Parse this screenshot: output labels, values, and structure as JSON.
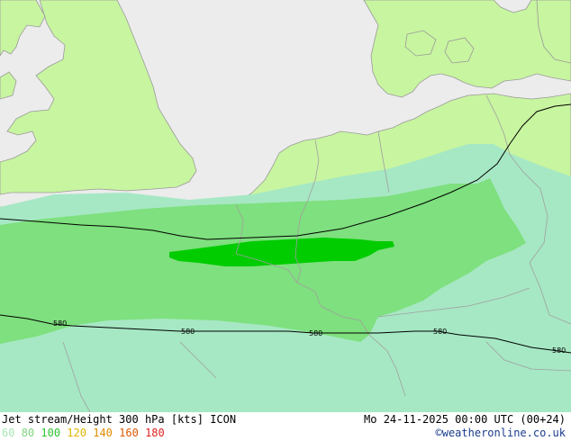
{
  "title": "Jet stream/Height 300 hPa [kts] ICON",
  "datetime": "Mo 24-11-2025 00:00 UTC (00+24)",
  "credit": "©weatheronline.co.uk",
  "legend": [
    {
      "label": "60",
      "color": "#a6e8b4"
    },
    {
      "label": "80",
      "color": "#7fd67f"
    },
    {
      "label": "100",
      "color": "#2fc42f"
    },
    {
      "label": "120",
      "color": "#e0b400"
    },
    {
      "label": "140",
      "color": "#e08a00"
    },
    {
      "label": "160",
      "color": "#e05a00"
    },
    {
      "label": "180",
      "color": "#e02020"
    }
  ],
  "contour_labels": [
    "580",
    "580",
    "580",
    "580",
    "580"
  ],
  "colors": {
    "sea": "#ececec",
    "land": "#c8f5a0",
    "jet_60": "#a6e8c4",
    "jet_80": "#7ee07e",
    "jet_100": "#00cc00",
    "borders": "#a0a0a0",
    "contour": "#000000"
  }
}
